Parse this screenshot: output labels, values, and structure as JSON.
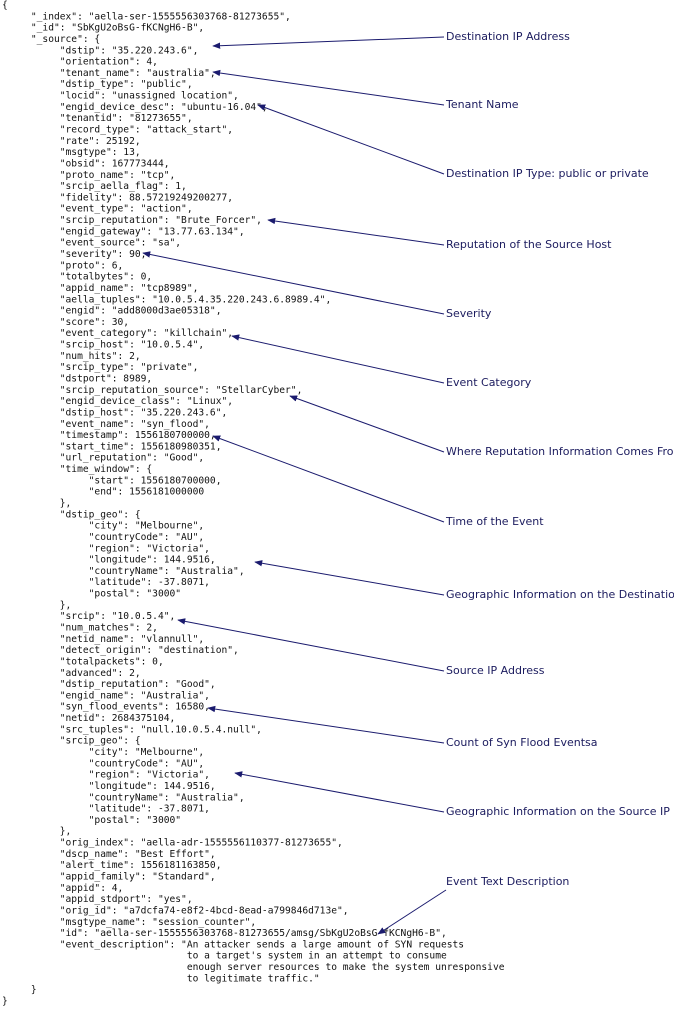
{
  "code_lines": [
    "{",
    "     \"_index\": \"aella-ser-1555556303768-81273655\",",
    "     \"_id\": \"SbKgU2oBsG-fKCNgH6-B\",",
    "     \"_source\": {",
    "          \"dstip\": \"35.220.243.6\",",
    "          \"orientation\": 4,",
    "          \"tenant_name\": \"australia\",",
    "          \"dstip_type\": \"public\",",
    "          \"locid\": \"unassigned location\",",
    "          \"engid_device_desc\": \"ubuntu-16.04\",",
    "          \"tenantid\": \"81273655\",",
    "          \"record_type\": \"attack_start\",",
    "          \"rate\": 25192,",
    "          \"msgtype\": 13,",
    "          \"obsid\": 167773444,",
    "          \"proto_name\": \"tcp\",",
    "          \"srcip_aella_flag\": 1,",
    "          \"fidelity\": 88.57219249200277,",
    "          \"event_type\": \"action\",",
    "          \"srcip_reputation\": \"Brute_Forcer\",",
    "          \"engid_gateway\": \"13.77.63.134\",",
    "          \"event_source\": \"sa\",",
    "          \"severity\": 90,",
    "          \"proto\": 6,",
    "          \"totalbytes\": 0,",
    "          \"appid_name\": \"tcp8989\",",
    "          \"aella_tuples\": \"10.0.5.4.35.220.243.6.8989.4\",",
    "          \"engid\": \"add8000d3ae05318\",",
    "          \"score\": 30,",
    "          \"event_category\": \"killchain\",",
    "          \"srcip_host\": \"10.0.5.4\",",
    "          \"num_hits\": 2,",
    "          \"srcip_type\": \"private\",",
    "          \"dstport\": 8989,",
    "          \"srcip_reputation_source\": \"StellarCyber\",",
    "          \"engid_device_class\": \"Linux\",",
    "          \"dstip_host\": \"35.220.243.6\",",
    "          \"event_name\": \"syn_flood\",",
    "          \"timestamp\": 1556180700000,",
    "          \"start_time\": 1556180980351,",
    "          \"url_reputation\": \"Good\",",
    "          \"time_window\": {",
    "               \"start\": 1556180700000,",
    "               \"end\": 1556181000000",
    "          },",
    "          \"dstip_geo\": {",
    "               \"city\": \"Melbourne\",",
    "               \"countryCode\": \"AU\",",
    "               \"region\": \"Victoria\",",
    "               \"longitude\": 144.9516,",
    "               \"countryName\": \"Australia\",",
    "               \"latitude\": -37.8071,",
    "               \"postal\": \"3000\"",
    "          },",
    "          \"srcip\": \"10.0.5.4\",",
    "          \"num_matches\": 2,",
    "          \"netid_name\": \"vlannull\",",
    "          \"detect_origin\": \"destination\",",
    "          \"totalpackets\": 0,",
    "          \"advanced\": 2,",
    "          \"dstip_reputation\": \"Good\",",
    "          \"engid_name\": \"Australia\",",
    "          \"syn_flood_events\": 16580,",
    "          \"netid\": 2684375104,",
    "          \"src_tuples\": \"null.10.0.5.4.null\",",
    "          \"srcip_geo\": {",
    "               \"city\": \"Melbourne\",",
    "               \"countryCode\": \"AU\",",
    "               \"region\": \"Victoria\",",
    "               \"longitude\": 144.9516,",
    "               \"countryName\": \"Australia\",",
    "               \"latitude\": -37.8071,",
    "               \"postal\": \"3000\"",
    "          },",
    "          \"orig_index\": \"aella-adr-1555556110377-81273655\",",
    "          \"dscp_name\": \"Best Effort\",",
    "          \"alert_time\": 1556181163850,",
    "          \"appid_family\": \"Standard\",",
    "          \"appid\": 4,",
    "          \"appid_stdport\": \"yes\",",
    "          \"orig_id\": \"a7dcfa74-e8f2-4bcd-8ead-a799846d713e\",",
    "          \"msgtype_name\": \"session_counter\",",
    "          \"id\": \"aella-ser-1555556303768-81273655/amsg/SbKgU2oBsG-fKCNgH6-B\",",
    "          \"event_description\": \"An attacker sends a large amount of SYN requests",
    "                                to a target's system in an attempt to consume",
    "                                enough server resources to make the system unresponsive",
    "                                to legitimate traffic.\"",
    "     }",
    "}"
  ],
  "annotations": [
    {
      "label": "Destination IP Address"
    },
    {
      "label": "Tenant Name"
    },
    {
      "label": "Destination IP Type: public or private"
    },
    {
      "label": "Reputation of the Source Host"
    },
    {
      "label": "Severity"
    },
    {
      "label": "Event Category"
    },
    {
      "label": "Where Reputation Information Comes From"
    },
    {
      "label": "Time of the Event"
    },
    {
      "label": "Geographic Information on the Destination IP"
    },
    {
      "label": "Source IP Address"
    },
    {
      "label": "Count of Syn Flood Eventsa"
    },
    {
      "label": "Geographic Information on the Source IP"
    },
    {
      "label": "Event Text Description"
    }
  ]
}
